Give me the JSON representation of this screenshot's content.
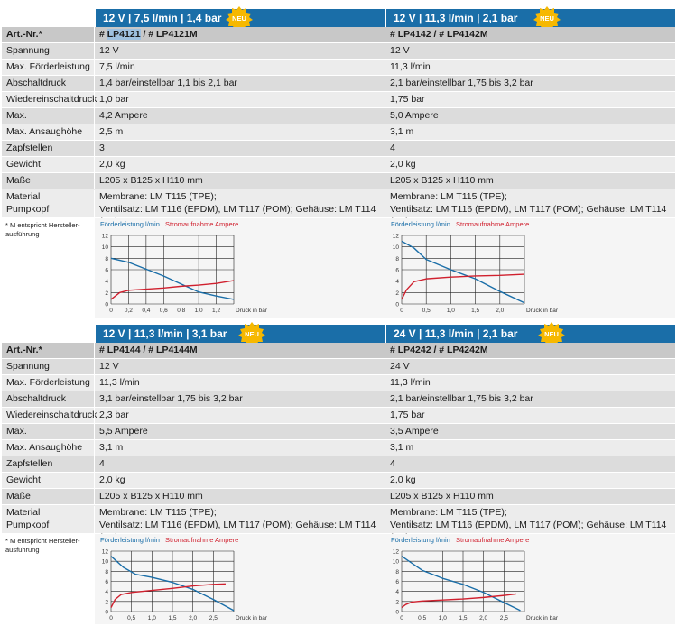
{
  "tables": [
    {
      "headers": [
        {
          "title": "12 V | 7,5 l/min | 1,4 bar",
          "badge": "NEU"
        },
        {
          "title": "12 V | 11,3 l/min | 2,1 bar",
          "badge": "NEU"
        }
      ],
      "rows": [
        {
          "label": "Art.-Nr.*",
          "v1a": "# ",
          "v1b": "LP4121",
          "v1c": " / # LP4121M",
          "v2": "# LP4142 / # LP4142M"
        },
        {
          "label": "Spannung",
          "v1": "12 V",
          "v2": "12 V"
        },
        {
          "label": "Max. Förderleistung",
          "v1": "7,5 l/min",
          "v2": "11,3 l/min"
        },
        {
          "label": "Abschaltdruck",
          "v1": "1,4 bar/einstellbar 1,1 bis 2,1 bar",
          "v2": "2,1 bar/einstellbar 1,75 bis 3,2 bar"
        },
        {
          "label": "Wiedereinschaltdruck",
          "v1": "1,0 bar",
          "v2": "1,75 bar"
        },
        {
          "label": "Max. Stromaufnahme",
          "v1": "4,2 Ampere",
          "v2": "5,0 Ampere"
        },
        {
          "label": "Max. Ansaughöhe",
          "v1": "2,5 m",
          "v2": "3,1 m"
        },
        {
          "label": "Zapfstellen",
          "v1": "3",
          "v2": "4"
        },
        {
          "label": "Gewicht",
          "v1": "2,0 kg",
          "v2": "2,0 kg"
        },
        {
          "label": "Maße",
          "v1": "L205 x B125 x H110 mm",
          "v2": "L205 x B125 x H110 mm"
        }
      ],
      "material": {
        "label1": "Material",
        "label2": "Pumpkopf",
        "v1_line1": "Membrane: LM T115 (TPE);",
        "v1_line2": "Ventilsatz: LM T116 (EPDM), LM T117 (POM); Gehäuse: LM T114 (PP)",
        "v2_line1": "Membrane: LM T115 (TPE);",
        "v2_line2": "Ventilsatz: LM T116 (EPDM), LM T117 (POM); Gehäuse: LM T114 (PP)"
      },
      "note_line1": "* M entspricht Hersteller-",
      "note_line2": "ausführung"
    },
    {
      "headers": [
        {
          "title": "12 V | 11,3 l/min | 3,1 bar",
          "badge": "NEU"
        },
        {
          "title": "24 V | 11,3 l/min | 2,1 bar",
          "badge": "NEU"
        }
      ],
      "rows": [
        {
          "label": "Art.-Nr.*",
          "v1": "# LP4144 / # LP4144M",
          "v2": "# LP4242 / # LP4242M"
        },
        {
          "label": "Spannung",
          "v1": "12 V",
          "v2": "24 V"
        },
        {
          "label": "Max. Förderleistung",
          "v1": "11,3 l/min",
          "v2": "11,3 l/min"
        },
        {
          "label": "Abschaltdruck",
          "v1": "3,1 bar/einstellbar 1,75 bis 3,2 bar",
          "v2": "2,1 bar/einstellbar 1,75 bis 3,2 bar"
        },
        {
          "label": "Wiedereinschaltdruck",
          "v1": "2,3 bar",
          "v2": "1,75 bar"
        },
        {
          "label": "Max. Stromaufnahme",
          "v1": "5,5 Ampere",
          "v2": "3,5 Ampere"
        },
        {
          "label": "Max. Ansaughöhe",
          "v1": "3,1 m",
          "v2": "3,1 m"
        },
        {
          "label": "Zapfstellen",
          "v1": "4",
          "v2": "4"
        },
        {
          "label": "Gewicht",
          "v1": "2,0 kg",
          "v2": "2,0 kg"
        },
        {
          "label": "Maße",
          "v1": "L205 x B125 x H110 mm",
          "v2": "L205 x B125 x H110 mm"
        }
      ],
      "material": {
        "label1": "Material",
        "label2": "Pumpkopf",
        "v1_line1": "Membrane: LM T115 (TPE);",
        "v1_line2": "Ventilsatz: LM T116 (EPDM), LM T117 (POM); Gehäuse: LM T114 (PP)",
        "v2_line1": "Membrane: LM T115 (TPE);",
        "v2_line2": "Ventilsatz: LM T116 (EPDM), LM T117 (POM); Gehäuse: LM T114 (PP)"
      },
      "note_line1": "* M entspricht Hersteller-",
      "note_line2": "ausführung"
    }
  ],
  "colors": {
    "header_blue": "#1a6ea8",
    "flow_line": "#1a6ea8",
    "current_line": "#d0202e",
    "badge_yellow": "#f6b800"
  },
  "chart_data": [
    {
      "type": "line",
      "legend": [
        "Förderleistung l/min",
        "Stromaufnahme Ampere"
      ],
      "xlabel": "Druck in bar",
      "xticks": [
        "0",
        "0,2",
        "0,4",
        "0,6",
        "0,8",
        "1,0",
        "1,2"
      ],
      "xlim": [
        0,
        1.4
      ],
      "yticks": [
        "0",
        "2",
        "4",
        "6",
        "8",
        "10",
        "12"
      ],
      "ylim": [
        0,
        12
      ],
      "series": [
        {
          "name": "Förderleistung l/min",
          "x": [
            0,
            0.2,
            0.4,
            0.6,
            0.8,
            1.0,
            1.2,
            1.4
          ],
          "y": [
            8.0,
            7.3,
            6.1,
            4.9,
            3.5,
            2.1,
            1.4,
            0.8
          ]
        },
        {
          "name": "Stromaufnahme Ampere",
          "x": [
            0,
            0.1,
            0.2,
            0.4,
            0.6,
            0.8,
            1.0,
            1.2,
            1.4
          ],
          "y": [
            0.8,
            2.0,
            2.4,
            2.6,
            2.8,
            3.1,
            3.3,
            3.6,
            4.1
          ]
        }
      ]
    },
    {
      "type": "line",
      "legend": [
        "Förderleistung l/min",
        "Stromaufnahme Ampere"
      ],
      "xlabel": "Druck in bar",
      "xticks": [
        "0",
        "0,5",
        "1,0",
        "1,5",
        "2,0"
      ],
      "xlim": [
        0,
        2.5
      ],
      "yticks": [
        "0",
        "2",
        "4",
        "6",
        "8",
        "10",
        "12"
      ],
      "ylim": [
        0,
        12
      ],
      "series": [
        {
          "name": "Förderleistung l/min",
          "x": [
            0,
            0.25,
            0.5,
            1.0,
            1.5,
            2.0,
            2.5
          ],
          "y": [
            11.0,
            9.8,
            7.8,
            6.0,
            4.4,
            2.2,
            0.2
          ]
        },
        {
          "name": "Stromaufnahme Ampere",
          "x": [
            0,
            0.1,
            0.25,
            0.5,
            1.0,
            1.5,
            2.0,
            2.5
          ],
          "y": [
            0.8,
            2.5,
            3.9,
            4.4,
            4.7,
            4.9,
            5.0,
            5.2
          ]
        }
      ]
    },
    {
      "type": "line",
      "legend": [
        "Förderleistung l/min",
        "Stromaufnahme Ampere"
      ],
      "xlabel": "Druck in bar",
      "xticks": [
        "0",
        "0,5",
        "1,0",
        "1,5",
        "2,0",
        "2,5"
      ],
      "xlim": [
        0,
        3.0
      ],
      "yticks": [
        "0",
        "2",
        "4",
        "6",
        "8",
        "10",
        "12"
      ],
      "ylim": [
        0,
        12
      ],
      "series": [
        {
          "name": "Förderleistung l/min",
          "x": [
            0,
            0.3,
            0.6,
            1.0,
            1.5,
            2.0,
            2.5,
            3.0
          ],
          "y": [
            11.0,
            8.8,
            7.4,
            6.8,
            5.8,
            4.4,
            2.4,
            0.2
          ]
        },
        {
          "name": "Stromaufnahme Ampere",
          "x": [
            0,
            0.1,
            0.25,
            0.5,
            1.0,
            1.5,
            2.0,
            2.5,
            2.8
          ],
          "y": [
            0.8,
            2.4,
            3.4,
            3.8,
            4.2,
            4.6,
            5.1,
            5.4,
            5.5
          ]
        }
      ]
    },
    {
      "type": "line",
      "legend": [
        "Förderleistung l/min",
        "Stromaufnahme Ampere"
      ],
      "xlabel": "Druck in bar",
      "xticks": [
        "0",
        "0,5",
        "1,0",
        "1,5",
        "2,0",
        "2,5"
      ],
      "xlim": [
        0,
        3.0
      ],
      "yticks": [
        "0",
        "2",
        "4",
        "6",
        "8",
        "10",
        "12"
      ],
      "ylim": [
        0,
        12
      ],
      "series": [
        {
          "name": "Förderleistung l/min",
          "x": [
            0,
            0.5,
            1.0,
            1.5,
            2.0,
            2.5,
            2.9
          ],
          "y": [
            11.0,
            8.2,
            6.6,
            5.4,
            3.8,
            1.8,
            0.2
          ]
        },
        {
          "name": "Stromaufnahme Ampere",
          "x": [
            0,
            0.1,
            0.25,
            0.5,
            1.0,
            1.5,
            2.0,
            2.5,
            2.8
          ],
          "y": [
            0.8,
            1.4,
            1.9,
            2.1,
            2.3,
            2.5,
            2.8,
            3.2,
            3.5
          ]
        }
      ]
    }
  ]
}
